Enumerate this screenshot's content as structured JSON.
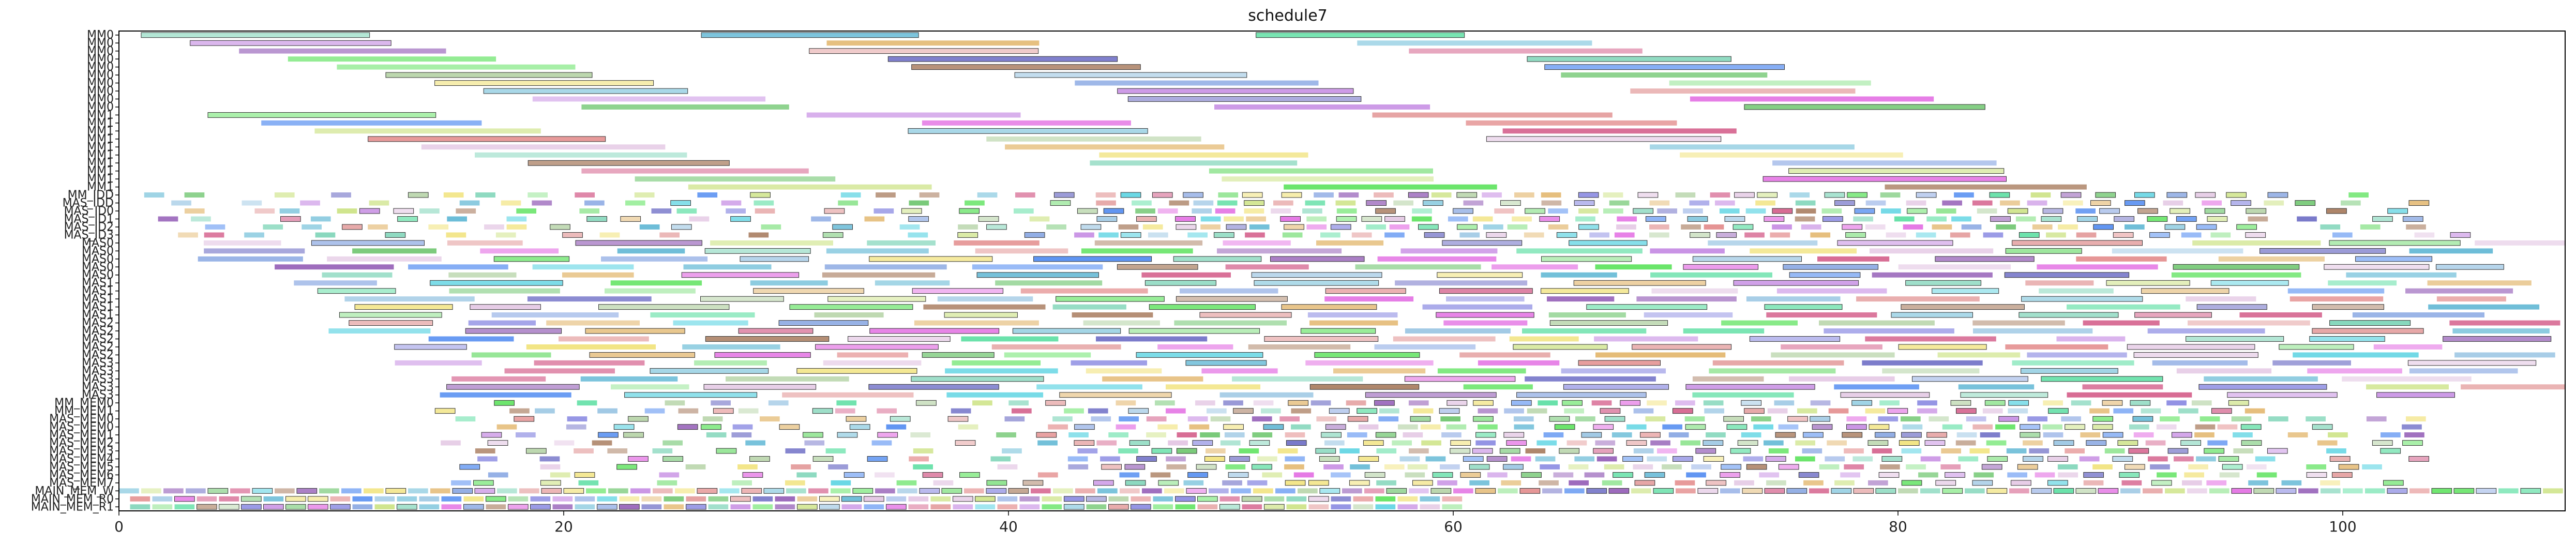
{
  "chart_data": {
    "type": "gantt",
    "title": "schedule7",
    "xlabel": "",
    "ylabel": "",
    "xlim": [
      0,
      110
    ],
    "x_ticks": [
      0,
      20,
      40,
      60,
      80,
      100
    ],
    "grid": false,
    "legend": "none",
    "rows": [
      "MM0",
      "MM0",
      "MM0",
      "MM0",
      "MM0",
      "MM0",
      "MM0",
      "MM0",
      "MM0",
      "MM0",
      "MM1",
      "MM1",
      "MM1",
      "MM1",
      "MM1",
      "MM1",
      "MM1",
      "MM1",
      "MM1",
      "MM1",
      "MM_IDD",
      "MAS_IDD",
      "MAS_ID0",
      "MAS_ID1",
      "MAS_ID2",
      "MAS_ID3",
      "MAS0",
      "MAS0",
      "MAS0",
      "MAS0",
      "MAS0",
      "MAS1",
      "MAS1",
      "MAS1",
      "MAS1",
      "MAS1",
      "MAS2",
      "MAS2",
      "MAS2",
      "MAS2",
      "MAS2",
      "MAS3",
      "MAS3",
      "MAS3",
      "MAS3",
      "MAS3",
      "MM_MEM0",
      "MM_MEM1",
      "MAS_MEM0",
      "MAS_MEM0",
      "MAS_MEM1",
      "MAS_MEM2",
      "MAS_MEM3",
      "MAS_MEM4",
      "MAS_MEM5",
      "MAS_MEM6",
      "MAS_MEM7",
      "MAIN_MEM_W",
      "MAIN_MEM_R0",
      "MAIN_MEM_R1"
    ],
    "rows_display": [
      "MM0",
      "MM0",
      "MM0",
      "MM0",
      "MM0",
      "MM0",
      "MM0",
      "MM0",
      "MM0",
      "MM0",
      "MM1",
      "MM1",
      "MM1",
      "MM1",
      "MM1",
      "MM1",
      "MM1",
      "MM1",
      "MM1",
      "MM1",
      "MM_IDD",
      "MAS_IDD",
      "MAS_ID0",
      "MAS_ID1",
      "MAS_ID2",
      "MAS_ID3",
      "MAS0",
      "MAS0",
      "MAS0",
      "MAS0",
      "MAS0",
      "MAS1",
      "MAS1",
      "MAS1",
      "MAS1",
      "MAS1",
      "MAS2",
      "MAS2",
      "MAS2",
      "MAS2",
      "MAS2",
      "MAS3",
      "MAS3",
      "MAS3",
      "MAS3",
      "MAS3",
      "MM_MEM0",
      "MM_MEM1",
      "MAS_MEM0",
      "MAS_MEM0",
      "MAS_MEM1",
      "MAS_MEM2",
      "MAS_MEM3",
      "MAS_MEM4",
      "MAS_MEM5",
      "MAS_MEM6",
      "MAS_MEM7",
      "MAIN_MEM_W",
      "MAIN_MEM_R0",
      "MAIN_MEM_R1"
    ],
    "task_duration_long": 10,
    "task_duration_short": 1,
    "palette": [
      "#7f7fdf",
      "#4fdc9b",
      "#3f7fef",
      "#e07f7f",
      "#c8e07a",
      "#8a4fb0",
      "#4fd0e0",
      "#e0b060",
      "#7fa0e0",
      "#60c060",
      "#e060e0",
      "#f0e070",
      "#a07050",
      "#50b0d0",
      "#b0d0a0",
      "#d05080",
      "#80e080",
      "#6060c0",
      "#e09090",
      "#50e050",
      "#c080e0",
      "#90c0e0",
      "#e0c0e0",
      "#70d0b0"
    ],
    "seed": 7,
    "bars_per_row": {
      "MM0": 3,
      "MM1": 3,
      "MAS": 14,
      "MEM": 30,
      "IDD": 30
    }
  }
}
